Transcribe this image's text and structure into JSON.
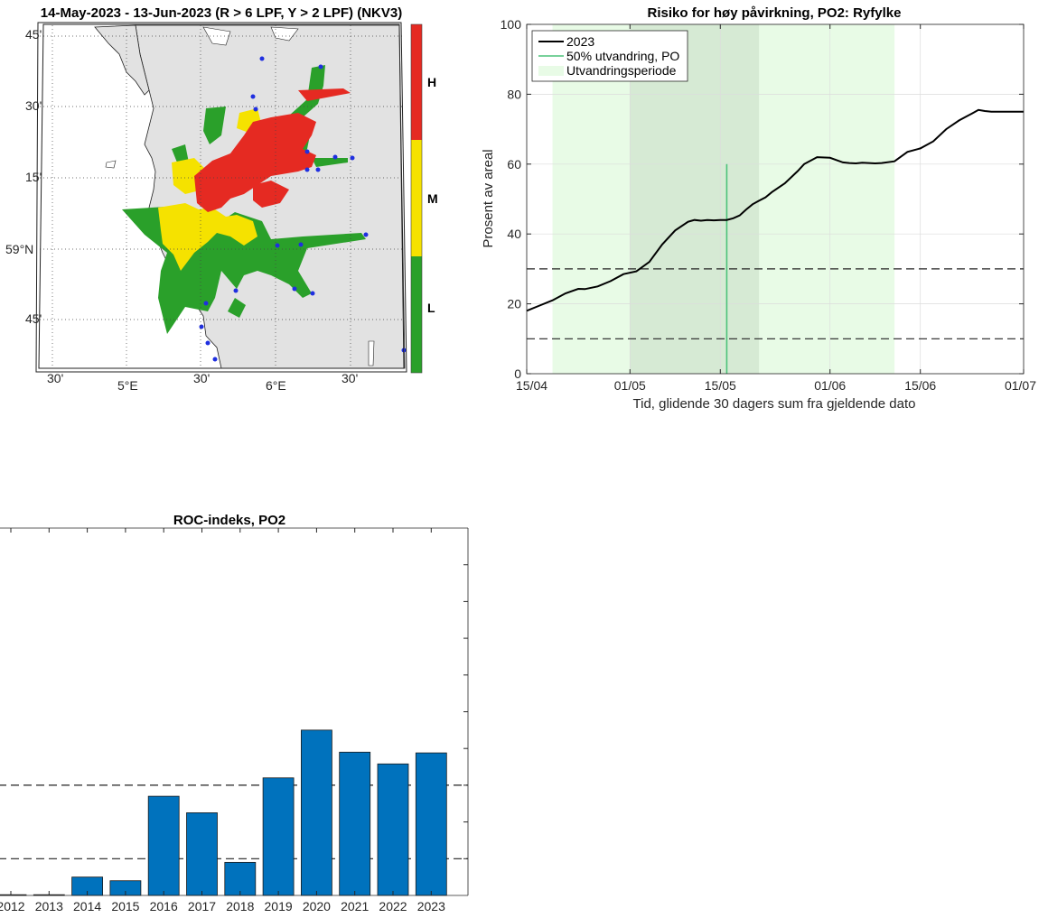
{
  "map_panel": {
    "title": "14-May-2023  - 13-Jun-2023  (R > 6 LPF, Y > 2 LPF) (NKV3)",
    "lat_labels": [
      "45'",
      "30'",
      "15'",
      "59°N",
      "45'"
    ],
    "lon_labels": [
      "30'",
      "5°E",
      "30'",
      "6°E",
      "30'"
    ],
    "colorbar": {
      "levels": [
        {
          "label": "H",
          "color": "#e52a22"
        },
        {
          "label": "M",
          "color": "#f5e200"
        },
        {
          "label": "L",
          "color": "#2aa02a"
        }
      ]
    },
    "colors": {
      "land": "#e2e2e2",
      "sea": "#ffffff",
      "station": "#1f2fe0"
    }
  },
  "chart_data": [
    {
      "type": "line",
      "title": "Risiko for høy påvirkning, PO2: Ryfylke",
      "xlabel": "Tid, glidende 30 dagers sum fra gjeldende dato",
      "ylabel": "Prosent av areal",
      "x_ticks": [
        "15/04",
        "01/05",
        "15/05",
        "01/06",
        "15/06",
        "01/07"
      ],
      "x_tick_days": [
        0,
        16,
        30,
        47,
        61,
        77
      ],
      "y_ticks": [
        "0",
        "20",
        "40",
        "60",
        "80",
        "100"
      ],
      "ylim": [
        0,
        100
      ],
      "xlim_days": [
        0,
        77
      ],
      "grid": true,
      "legend": {
        "location": "top-left",
        "entries": [
          "2023",
          "50% utvandring, PO",
          "Utvandringsperiode"
        ]
      },
      "series": [
        {
          "name": "2023",
          "color": "#000000",
          "x_days": [
            0,
            2,
            4,
            6,
            8,
            9,
            11,
            13,
            15,
            17,
            19,
            21,
            23,
            25,
            26,
            27,
            28,
            29,
            30,
            31,
            32,
            33,
            34,
            35,
            36,
            37,
            38,
            40,
            42,
            43,
            45,
            47,
            49,
            50,
            51,
            52,
            53,
            54,
            55,
            57,
            59,
            61,
            63,
            65,
            67,
            69,
            70,
            71,
            72,
            74,
            75,
            76,
            77
          ],
          "values": [
            18,
            19.5,
            21,
            23,
            24.3,
            24.2,
            25,
            26.5,
            28.5,
            29.3,
            32,
            37,
            41,
            43.5,
            44,
            43.8,
            44,
            43.9,
            44,
            44,
            44.5,
            45.3,
            47,
            48.5,
            49.5,
            50.5,
            52,
            54.5,
            58,
            60,
            62,
            61.8,
            60.5,
            60.3,
            60.2,
            60.4,
            60.3,
            60.2,
            60.3,
            60.8,
            63.5,
            64.5,
            66.5,
            70,
            72.5,
            74.5,
            75.5,
            75.2,
            75,
            75,
            75,
            75,
            75
          ]
        }
      ],
      "vertical_line": {
        "label": "50% utvandring, PO",
        "x_day": 31,
        "y_top": 60,
        "color": "#4cc27a"
      },
      "shaded_regions": [
        {
          "label": "Utvandringsperiode",
          "from_day": 4,
          "to_day": 57,
          "color": "#e8fbe6"
        },
        {
          "from_day": 16,
          "to_day": 36,
          "color": "#d6ead4"
        }
      ],
      "hlines": [
        10,
        30
      ]
    },
    {
      "type": "bar",
      "title": "ROC-indeks, PO2",
      "categories": [
        "2012",
        "2013",
        "2014",
        "2015",
        "2016",
        "2017",
        "2018",
        "2019",
        "2020",
        "2021",
        "2022",
        "2023"
      ],
      "values": [
        0.2,
        0.2,
        5,
        4,
        27,
        22.5,
        9,
        32,
        45,
        39,
        35.8,
        38.8
      ],
      "bar_color": "#0072bd",
      "hlines": [
        10,
        30
      ],
      "ylim": [
        0,
        100
      ]
    }
  ]
}
